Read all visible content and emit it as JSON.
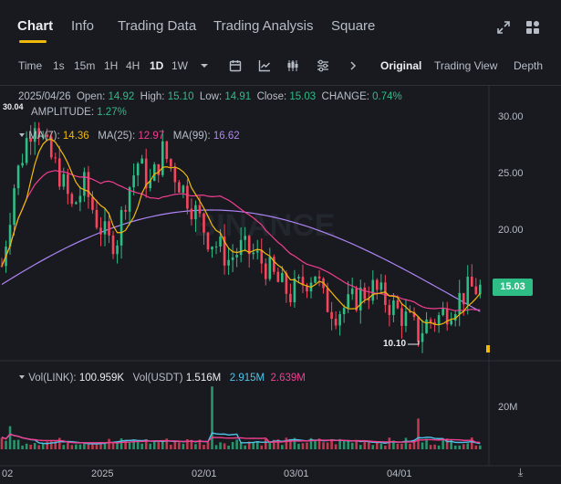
{
  "tabs": [
    "Chart",
    "Info",
    "Trading Data",
    "Trading Analysis",
    "Square"
  ],
  "toolbar": {
    "intervals": [
      "Time",
      "1s",
      "15m",
      "1H",
      "4H",
      "1D",
      "1W"
    ],
    "active_interval": "1D",
    "views": [
      "Original",
      "Trading View",
      "Depth"
    ],
    "active_view": "Original"
  },
  "ohlc": {
    "date": "2025/04/26",
    "open_label": "Open:",
    "open": "14.92",
    "high_label": "High:",
    "high": "15.10",
    "low_label": "Low:",
    "low": "14.91",
    "close_label": "Close:",
    "close": "15.03",
    "change_label": "CHANGE:",
    "change": "0.74%",
    "amplitude_label": "AMPLITUDE:",
    "amplitude": "1.27%"
  },
  "ma": {
    "ma7_label": "MA(7):",
    "ma7": "14.36",
    "ma25_label": "MA(25):",
    "ma25": "12.97",
    "ma99_label": "MA(99):",
    "ma99": "16.62"
  },
  "price_axis": [
    "30.00",
    "25.00",
    "20.00",
    "15.00"
  ],
  "current_price": "15.03",
  "max_label": "30.04",
  "min_label": "10.10",
  "watermark": "BINANCE",
  "volume": {
    "title": "Vol(LINK):",
    "link": "100.959K",
    "usdt_label": "Vol(USDT)",
    "usdt": "1.516M",
    "ma_a": "2.915M",
    "ma_b": "2.639M",
    "axis": "20M"
  },
  "x_axis": [
    "02",
    "2025",
    "02/01",
    "03/01",
    "04/01"
  ],
  "colors": {
    "up": "#2ebd85",
    "down": "#f6465d",
    "ma7": "#f0b90b",
    "ma25": "#f23e8f",
    "ma99": "#b084f5",
    "vol_ma_a": "#4fc3e8",
    "vol_ma_b": "#f23e8f"
  },
  "chart_data": {
    "type": "candlestick",
    "y_range": [
      9,
      31
    ],
    "keypoints": [
      [
        0,
        17
      ],
      [
        3,
        24
      ],
      [
        6,
        28
      ],
      [
        8,
        30
      ],
      [
        11,
        27
      ],
      [
        14,
        25
      ],
      [
        17,
        22
      ],
      [
        20,
        24
      ],
      [
        23,
        21
      ],
      [
        26,
        19
      ],
      [
        28,
        19.5
      ],
      [
        30,
        23
      ],
      [
        33,
        26
      ],
      [
        36,
        24
      ],
      [
        39,
        27
      ],
      [
        42,
        25
      ],
      [
        45,
        23
      ],
      [
        48,
        21
      ],
      [
        50,
        19.5
      ],
      [
        53,
        18.5
      ],
      [
        55,
        17.5
      ],
      [
        58,
        18.5
      ],
      [
        61,
        18
      ],
      [
        64,
        17
      ],
      [
        67,
        15.5
      ],
      [
        70,
        14.5
      ],
      [
        73,
        15.5
      ],
      [
        76,
        16.5
      ],
      [
        78,
        14
      ],
      [
        81,
        13
      ],
      [
        84,
        13.5
      ],
      [
        87,
        14.5
      ],
      [
        90,
        15
      ],
      [
        93,
        14
      ],
      [
        96,
        13
      ],
      [
        99,
        12
      ],
      [
        101,
        11
      ],
      [
        103,
        12
      ],
      [
        106,
        12.5
      ],
      [
        109,
        13.5
      ],
      [
        112,
        14.5
      ],
      [
        114,
        15
      ],
      [
        116,
        15
      ]
    ]
  }
}
